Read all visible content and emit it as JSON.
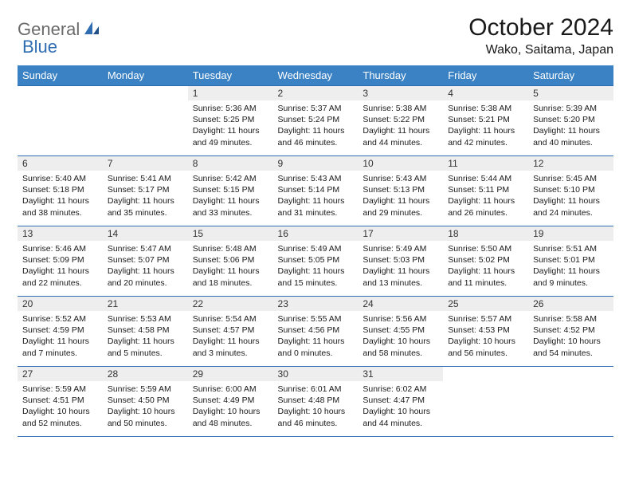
{
  "logo": {
    "text1": "General",
    "text2": "Blue",
    "text1_color": "#6a6a6a",
    "text2_color": "#2f6db2"
  },
  "header": {
    "month": "October 2024",
    "location": "Wako, Saitama, Japan"
  },
  "colors": {
    "header_bg": "#3b82c4",
    "header_fg": "#ffffff",
    "divider": "#2f6db2",
    "daynum_bg": "#eeeeee"
  },
  "daynames": [
    "Sunday",
    "Monday",
    "Tuesday",
    "Wednesday",
    "Thursday",
    "Friday",
    "Saturday"
  ],
  "weeks": [
    [
      {
        "n": "",
        "sr": "",
        "ss": "",
        "dl": ""
      },
      {
        "n": "",
        "sr": "",
        "ss": "",
        "dl": ""
      },
      {
        "n": "1",
        "sr": "Sunrise: 5:36 AM",
        "ss": "Sunset: 5:25 PM",
        "dl": "Daylight: 11 hours and 49 minutes."
      },
      {
        "n": "2",
        "sr": "Sunrise: 5:37 AM",
        "ss": "Sunset: 5:24 PM",
        "dl": "Daylight: 11 hours and 46 minutes."
      },
      {
        "n": "3",
        "sr": "Sunrise: 5:38 AM",
        "ss": "Sunset: 5:22 PM",
        "dl": "Daylight: 11 hours and 44 minutes."
      },
      {
        "n": "4",
        "sr": "Sunrise: 5:38 AM",
        "ss": "Sunset: 5:21 PM",
        "dl": "Daylight: 11 hours and 42 minutes."
      },
      {
        "n": "5",
        "sr": "Sunrise: 5:39 AM",
        "ss": "Sunset: 5:20 PM",
        "dl": "Daylight: 11 hours and 40 minutes."
      }
    ],
    [
      {
        "n": "6",
        "sr": "Sunrise: 5:40 AM",
        "ss": "Sunset: 5:18 PM",
        "dl": "Daylight: 11 hours and 38 minutes."
      },
      {
        "n": "7",
        "sr": "Sunrise: 5:41 AM",
        "ss": "Sunset: 5:17 PM",
        "dl": "Daylight: 11 hours and 35 minutes."
      },
      {
        "n": "8",
        "sr": "Sunrise: 5:42 AM",
        "ss": "Sunset: 5:15 PM",
        "dl": "Daylight: 11 hours and 33 minutes."
      },
      {
        "n": "9",
        "sr": "Sunrise: 5:43 AM",
        "ss": "Sunset: 5:14 PM",
        "dl": "Daylight: 11 hours and 31 minutes."
      },
      {
        "n": "10",
        "sr": "Sunrise: 5:43 AM",
        "ss": "Sunset: 5:13 PM",
        "dl": "Daylight: 11 hours and 29 minutes."
      },
      {
        "n": "11",
        "sr": "Sunrise: 5:44 AM",
        "ss": "Sunset: 5:11 PM",
        "dl": "Daylight: 11 hours and 26 minutes."
      },
      {
        "n": "12",
        "sr": "Sunrise: 5:45 AM",
        "ss": "Sunset: 5:10 PM",
        "dl": "Daylight: 11 hours and 24 minutes."
      }
    ],
    [
      {
        "n": "13",
        "sr": "Sunrise: 5:46 AM",
        "ss": "Sunset: 5:09 PM",
        "dl": "Daylight: 11 hours and 22 minutes."
      },
      {
        "n": "14",
        "sr": "Sunrise: 5:47 AM",
        "ss": "Sunset: 5:07 PM",
        "dl": "Daylight: 11 hours and 20 minutes."
      },
      {
        "n": "15",
        "sr": "Sunrise: 5:48 AM",
        "ss": "Sunset: 5:06 PM",
        "dl": "Daylight: 11 hours and 18 minutes."
      },
      {
        "n": "16",
        "sr": "Sunrise: 5:49 AM",
        "ss": "Sunset: 5:05 PM",
        "dl": "Daylight: 11 hours and 15 minutes."
      },
      {
        "n": "17",
        "sr": "Sunrise: 5:49 AM",
        "ss": "Sunset: 5:03 PM",
        "dl": "Daylight: 11 hours and 13 minutes."
      },
      {
        "n": "18",
        "sr": "Sunrise: 5:50 AM",
        "ss": "Sunset: 5:02 PM",
        "dl": "Daylight: 11 hours and 11 minutes."
      },
      {
        "n": "19",
        "sr": "Sunrise: 5:51 AM",
        "ss": "Sunset: 5:01 PM",
        "dl": "Daylight: 11 hours and 9 minutes."
      }
    ],
    [
      {
        "n": "20",
        "sr": "Sunrise: 5:52 AM",
        "ss": "Sunset: 4:59 PM",
        "dl": "Daylight: 11 hours and 7 minutes."
      },
      {
        "n": "21",
        "sr": "Sunrise: 5:53 AM",
        "ss": "Sunset: 4:58 PM",
        "dl": "Daylight: 11 hours and 5 minutes."
      },
      {
        "n": "22",
        "sr": "Sunrise: 5:54 AM",
        "ss": "Sunset: 4:57 PM",
        "dl": "Daylight: 11 hours and 3 minutes."
      },
      {
        "n": "23",
        "sr": "Sunrise: 5:55 AM",
        "ss": "Sunset: 4:56 PM",
        "dl": "Daylight: 11 hours and 0 minutes."
      },
      {
        "n": "24",
        "sr": "Sunrise: 5:56 AM",
        "ss": "Sunset: 4:55 PM",
        "dl": "Daylight: 10 hours and 58 minutes."
      },
      {
        "n": "25",
        "sr": "Sunrise: 5:57 AM",
        "ss": "Sunset: 4:53 PM",
        "dl": "Daylight: 10 hours and 56 minutes."
      },
      {
        "n": "26",
        "sr": "Sunrise: 5:58 AM",
        "ss": "Sunset: 4:52 PM",
        "dl": "Daylight: 10 hours and 54 minutes."
      }
    ],
    [
      {
        "n": "27",
        "sr": "Sunrise: 5:59 AM",
        "ss": "Sunset: 4:51 PM",
        "dl": "Daylight: 10 hours and 52 minutes."
      },
      {
        "n": "28",
        "sr": "Sunrise: 5:59 AM",
        "ss": "Sunset: 4:50 PM",
        "dl": "Daylight: 10 hours and 50 minutes."
      },
      {
        "n": "29",
        "sr": "Sunrise: 6:00 AM",
        "ss": "Sunset: 4:49 PM",
        "dl": "Daylight: 10 hours and 48 minutes."
      },
      {
        "n": "30",
        "sr": "Sunrise: 6:01 AM",
        "ss": "Sunset: 4:48 PM",
        "dl": "Daylight: 10 hours and 46 minutes."
      },
      {
        "n": "31",
        "sr": "Sunrise: 6:02 AM",
        "ss": "Sunset: 4:47 PM",
        "dl": "Daylight: 10 hours and 44 minutes."
      },
      {
        "n": "",
        "sr": "",
        "ss": "",
        "dl": ""
      },
      {
        "n": "",
        "sr": "",
        "ss": "",
        "dl": ""
      }
    ]
  ]
}
